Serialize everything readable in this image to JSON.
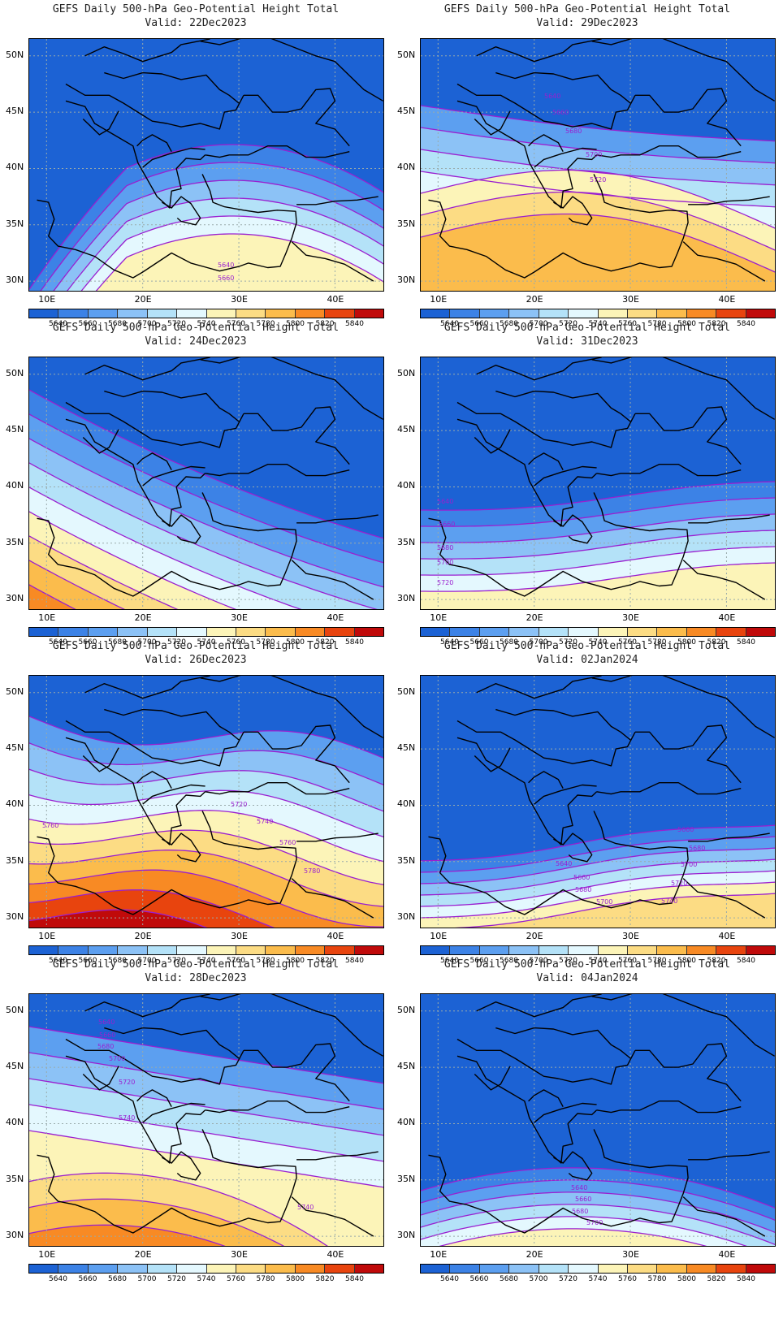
{
  "title": "GEFS Daily 500-hPa Geo-Potential Height Total",
  "lat_labels": [
    "50N",
    "45N",
    "40N",
    "35N",
    "30N"
  ],
  "lon_labels": [
    "10E",
    "20E",
    "30E",
    "40E"
  ],
  "colorbar": {
    "labels": [
      "5640",
      "5660",
      "5680",
      "5700",
      "5720",
      "5740",
      "5760",
      "5780",
      "5800",
      "5820",
      "5840"
    ],
    "colors": [
      "#1c62d4",
      "#3c82e6",
      "#5c9ff0",
      "#8cc2f6",
      "#b4e2f8",
      "#e4f8fe",
      "#fcf4b8",
      "#fcdc84",
      "#fbbc4c",
      "#f88a24",
      "#e8440e",
      "#c00a0a"
    ]
  },
  "panels": [
    {
      "valid": "Valid: 22Dec2023",
      "contour_labels": [
        "5640",
        "5660"
      ]
    },
    {
      "valid": "Valid: 29Dec2023",
      "contour_labels": [
        "5640",
        "5660",
        "5680",
        "5700",
        "5720"
      ]
    },
    {
      "valid": "Valid: 24Dec2023",
      "contour_labels": []
    },
    {
      "valid": "Valid: 31Dec2023",
      "contour_labels": [
        "5640",
        "5660",
        "5680",
        "5700",
        "5720"
      ]
    },
    {
      "valid": "Valid: 26Dec2023",
      "contour_labels": [
        "5720",
        "5740",
        "5760",
        "5760",
        "5780"
      ]
    },
    {
      "valid": "Valid: 02Jan2024",
      "contour_labels": [
        "5640",
        "5660",
        "5680",
        "5700",
        "5660",
        "5680",
        "5700",
        "5720",
        "5740"
      ]
    },
    {
      "valid": "Valid: 28Dec2023",
      "contour_labels": [
        "5640",
        "5660",
        "5680",
        "5700",
        "5720",
        "5740",
        "5740"
      ]
    },
    {
      "valid": "Valid: 04Jan2024",
      "contour_labels": [
        "5640",
        "5660",
        "5680",
        "5700"
      ]
    }
  ]
}
